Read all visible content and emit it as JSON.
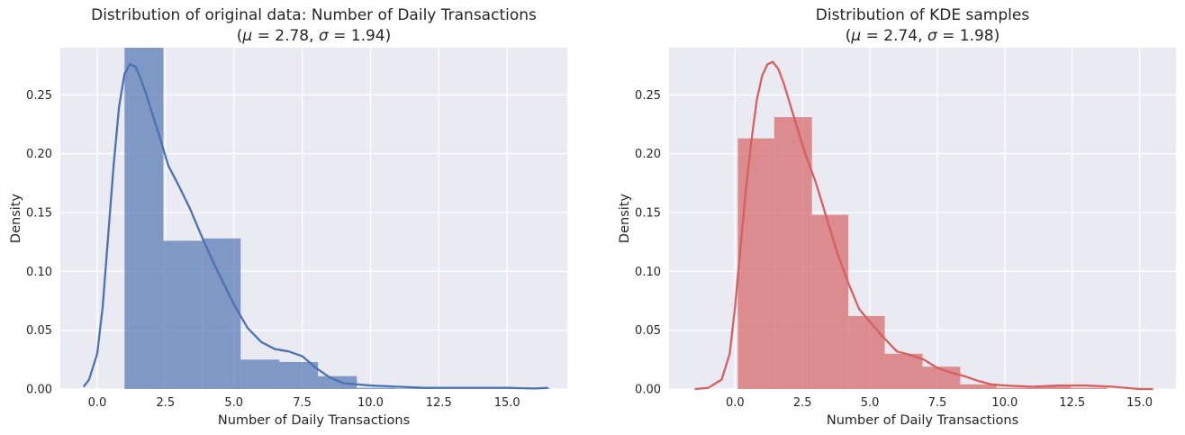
{
  "chart_data": [
    {
      "type": "histogram",
      "title_line1": "Distribution of original data: Number of Daily Transactions",
      "title_line2_prefix": "(",
      "mu_symbol": "μ",
      "mu_text": " = 2.78, ",
      "sigma_symbol": "σ",
      "sigma_text": " = 1.94)",
      "xlabel": "Number of Daily Transactions",
      "ylabel": "Density",
      "xlim": [
        -1.35,
        17.2
      ],
      "ylim": [
        0,
        0.29
      ],
      "xticks": [
        0.0,
        2.5,
        5.0,
        7.5,
        10.0,
        12.5,
        15.0
      ],
      "xtick_labels": [
        "0.0",
        "2.5",
        "5.0",
        "7.5",
        "10.0",
        "12.5",
        "15.0"
      ],
      "yticks": [
        0.0,
        0.05,
        0.1,
        0.15,
        0.2,
        0.25
      ],
      "ytick_labels": [
        "0.00",
        "0.05",
        "0.10",
        "0.15",
        "0.20",
        "0.25"
      ],
      "bar_color": "#4c72b0",
      "line_color": "#4c72b0",
      "bins": [
        {
          "x0": 1.0,
          "x1": 2.42,
          "density": 0.29
        },
        {
          "x0": 2.42,
          "x1": 3.83,
          "density": 0.126
        },
        {
          "x0": 3.83,
          "x1": 5.25,
          "density": 0.128
        },
        {
          "x0": 5.25,
          "x1": 6.67,
          "density": 0.025
        },
        {
          "x0": 6.67,
          "x1": 8.08,
          "density": 0.023
        },
        {
          "x0": 8.08,
          "x1": 9.5,
          "density": 0.011
        },
        {
          "x0": 9.5,
          "x1": 10.92,
          "density": 0.001
        },
        {
          "x0": 10.92,
          "x1": 12.33,
          "density": 0.0005
        },
        {
          "x0": 12.33,
          "x1": 13.75,
          "density": 0.0
        },
        {
          "x0": 13.75,
          "x1": 15.17,
          "density": 0.0
        },
        {
          "x0": 15.17,
          "x1": 16.58,
          "density": 0.0005
        }
      ],
      "kde": {
        "x": [
          -0.5,
          -0.3,
          0.0,
          0.2,
          0.4,
          0.6,
          0.8,
          1.0,
          1.2,
          1.4,
          1.6,
          1.8,
          2.0,
          2.3,
          2.6,
          3.0,
          3.4,
          3.8,
          4.2,
          4.6,
          5.0,
          5.5,
          6.0,
          6.5,
          7.0,
          7.5,
          8.0,
          8.5,
          9.0,
          9.5,
          10.0,
          11.0,
          12.0,
          13.0,
          14.0,
          15.0,
          16.0,
          16.5
        ],
        "y": [
          0.002,
          0.008,
          0.03,
          0.07,
          0.13,
          0.19,
          0.24,
          0.268,
          0.276,
          0.274,
          0.263,
          0.25,
          0.235,
          0.213,
          0.19,
          0.172,
          0.153,
          0.131,
          0.11,
          0.091,
          0.072,
          0.052,
          0.04,
          0.034,
          0.032,
          0.028,
          0.018,
          0.01,
          0.005,
          0.004,
          0.003,
          0.002,
          0.001,
          0.001,
          0.001,
          0.001,
          0.0005,
          0.001
        ]
      }
    },
    {
      "type": "histogram",
      "title_line1": "Distribution of KDE samples",
      "title_line2_prefix": "(",
      "mu_symbol": "μ",
      "mu_text": " = 2.74, ",
      "sigma_symbol": "σ",
      "sigma_text": " = 1.98)",
      "xlabel": "Number of Daily Transactions",
      "ylabel": "Density",
      "xlim": [
        -2.45,
        16.35
      ],
      "ylim": [
        0,
        0.29
      ],
      "xticks": [
        0.0,
        2.5,
        5.0,
        7.5,
        10.0,
        12.5,
        15.0
      ],
      "xtick_labels": [
        "0.0",
        "2.5",
        "5.0",
        "7.5",
        "10.0",
        "12.5",
        "15.0"
      ],
      "yticks": [
        0.0,
        0.05,
        0.1,
        0.15,
        0.2,
        0.25
      ],
      "ytick_labels": [
        "0.00",
        "0.05",
        "0.10",
        "0.15",
        "0.20",
        "0.25"
      ],
      "bar_color": "#d65f5f",
      "line_color": "#d65f5f",
      "bins": [
        {
          "x0": 0.1,
          "x1": 1.45,
          "density": 0.213
        },
        {
          "x0": 1.45,
          "x1": 2.85,
          "density": 0.231
        },
        {
          "x0": 2.85,
          "x1": 4.2,
          "density": 0.148
        },
        {
          "x0": 4.2,
          "x1": 5.55,
          "density": 0.062
        },
        {
          "x0": 5.55,
          "x1": 6.95,
          "density": 0.03
        },
        {
          "x0": 6.95,
          "x1": 8.35,
          "density": 0.019
        },
        {
          "x0": 8.35,
          "x1": 9.7,
          "density": 0.004
        },
        {
          "x0": 9.7,
          "x1": 11.1,
          "density": 0.001
        },
        {
          "x0": 11.1,
          "x1": 12.45,
          "density": 0.002
        },
        {
          "x0": 12.45,
          "x1": 13.8,
          "density": 0.001
        }
      ],
      "kde": {
        "x": [
          -1.5,
          -1.0,
          -0.5,
          -0.2,
          0.0,
          0.2,
          0.4,
          0.6,
          0.8,
          1.0,
          1.2,
          1.4,
          1.6,
          1.8,
          2.0,
          2.3,
          2.6,
          3.0,
          3.4,
          3.8,
          4.2,
          4.6,
          5.0,
          5.5,
          6.0,
          6.5,
          7.0,
          7.5,
          8.0,
          8.5,
          9.0,
          9.5,
          10.0,
          11.0,
          12.0,
          13.0,
          14.0,
          15.0,
          15.5
        ],
        "y": [
          0.0,
          0.001,
          0.008,
          0.03,
          0.07,
          0.12,
          0.17,
          0.21,
          0.245,
          0.266,
          0.276,
          0.278,
          0.272,
          0.26,
          0.245,
          0.222,
          0.2,
          0.175,
          0.145,
          0.115,
          0.09,
          0.068,
          0.057,
          0.044,
          0.032,
          0.029,
          0.025,
          0.018,
          0.014,
          0.011,
          0.007,
          0.004,
          0.003,
          0.002,
          0.003,
          0.003,
          0.002,
          0.0,
          0.0
        ]
      }
    }
  ]
}
